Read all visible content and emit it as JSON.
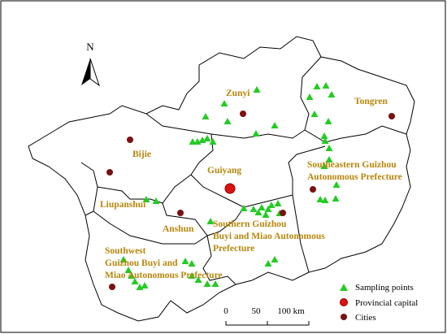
{
  "north_label": "N",
  "regions": [
    {
      "lines": [
        "Zunyi"
      ]
    },
    {
      "lines": [
        "Tongren"
      ]
    },
    {
      "lines": [
        "Bijie"
      ]
    },
    {
      "lines": [
        "Guiyang"
      ]
    },
    {
      "lines": [
        "Southeastern Guizhou",
        "Autonomous Prefecture"
      ]
    },
    {
      "lines": [
        "Liupanshui"
      ]
    },
    {
      "lines": [
        "Anshun"
      ]
    },
    {
      "lines": [
        "Southern Guizhou",
        "Buyi and Miao Autonomous",
        "Prefecture"
      ]
    },
    {
      "lines": [
        "Southwest",
        "Guizhou Buyi and",
        "Miao Autonomous Prefecture"
      ]
    }
  ],
  "legend": [
    "Sampling points",
    "Provincial capital",
    "Cities"
  ],
  "scale_bar": [
    "0",
    "50",
    "100 km"
  ]
}
